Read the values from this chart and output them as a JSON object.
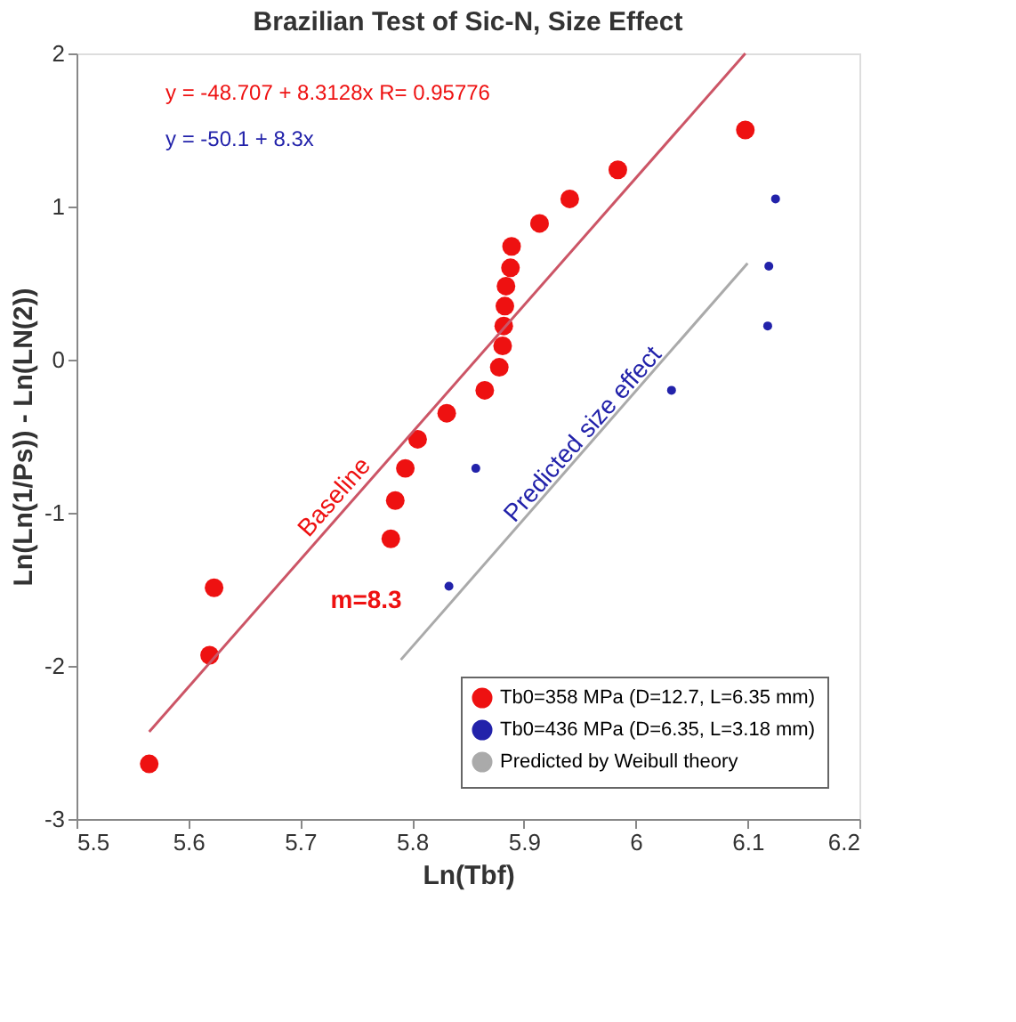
{
  "chart_data": {
    "type": "scatter",
    "title": "Brazilian Test of Sic-N, Size Effect",
    "xlabel": "Ln(Tbf)",
    "ylabel": "Ln(Ln(1/Ps)) - Ln(LN(2))",
    "xlim": [
      5.5,
      6.2
    ],
    "xticks": [
      5.5,
      5.6,
      5.7,
      5.8,
      5.9,
      6,
      6.1,
      6.2
    ],
    "ylim": [
      -3,
      2
    ],
    "yticks": [
      -3,
      -2,
      -1,
      0,
      1,
      2
    ],
    "grid": false,
    "legend": "bottom right",
    "marker": "circle",
    "series": [
      {
        "name": "Tb0=358 MPa (D=12.7, L=6.35 mm)",
        "color": "#ee1111",
        "x": [
          5.565,
          5.619,
          5.623,
          5.781,
          5.785,
          5.794,
          5.805,
          5.831,
          5.865,
          5.878,
          5.881,
          5.882,
          5.883,
          5.884,
          5.888,
          5.889,
          5.914,
          5.941,
          5.984,
          6.098
        ],
        "values": [
          -2.64,
          -1.93,
          -1.49,
          -1.17,
          -0.92,
          -0.71,
          -0.52,
          -0.35,
          -0.2,
          -0.05,
          0.09,
          0.22,
          0.35,
          0.48,
          0.6,
          0.74,
          0.89,
          1.05,
          1.24,
          1.5
        ]
      },
      {
        "name": "Tb0=436 MPa (D=6.35, L=3.18 mm)",
        "color": "#2222aa",
        "x": [
          5.833,
          5.857,
          6.032,
          6.118,
          6.119,
          6.125
        ],
        "values": [
          -1.48,
          -0.71,
          -0.2,
          0.22,
          0.61,
          1.05
        ]
      },
      {
        "type": "line",
        "marker": "none",
        "color": "#cc5566",
        "x": [
          5.565,
          6.098
        ],
        "values": [
          -2.43,
          2.0
        ]
      },
      {
        "type": "line",
        "marker": "none",
        "name": "Predicted by Weibull theory",
        "color": "#aaaaaa",
        "x": [
          5.79,
          6.1
        ],
        "values": [
          -1.96,
          0.63
        ]
      }
    ],
    "annotations": [
      "y = -48.707 + 8.3128x   R= 0.95776",
      "y = -50.1 + 8.3x",
      "Baseline",
      {
        "text": "Predicted size effect",
        "x": 5.953,
        "y": -0.49
      },
      "m=8.3"
    ]
  }
}
